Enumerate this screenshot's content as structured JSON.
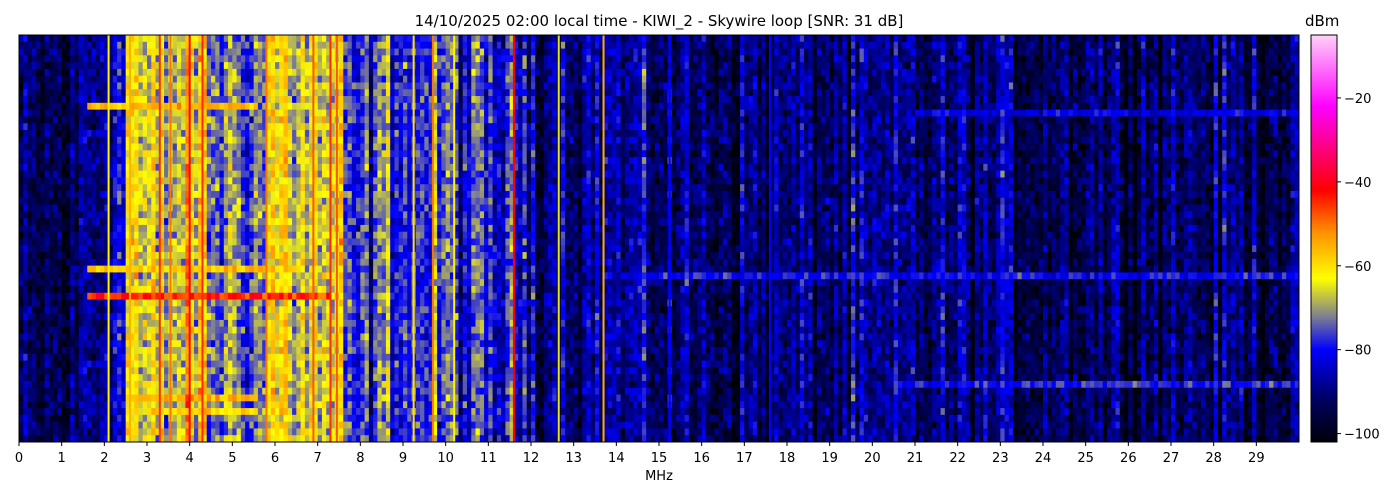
{
  "chart_data": {
    "type": "heatmap",
    "title": "14/10/2025 02:00 local time - KIWI_2 - Skywire loop [SNR: 31 dB]",
    "xlabel": "MHz",
    "ylabel": "",
    "xlim": [
      0,
      30
    ],
    "x_ticks": [
      "0",
      "1",
      "2",
      "3",
      "4",
      "5",
      "6",
      "7",
      "8",
      "9",
      "10",
      "11",
      "12",
      "13",
      "14",
      "15",
      "16",
      "17",
      "18",
      "19",
      "20",
      "21",
      "22",
      "23",
      "24",
      "25",
      "26",
      "27",
      "28",
      "29"
    ],
    "colorbar": {
      "label": "dBm",
      "range": [
        -102,
        -5
      ],
      "ticks": [
        -20,
        -40,
        -60,
        -80,
        -100
      ],
      "tick_labels": [
        "−20",
        "−40",
        "−60",
        "−80",
        "−100"
      ],
      "colormap": [
        {
          "dBm": -102,
          "color": "#000008"
        },
        {
          "dBm": -92,
          "color": "#000060"
        },
        {
          "dBm": -80,
          "color": "#0000ff"
        },
        {
          "dBm": -72,
          "color": "#808090"
        },
        {
          "dBm": -63,
          "color": "#ffff00"
        },
        {
          "dBm": -52,
          "color": "#ff9000"
        },
        {
          "dBm": -42,
          "color": "#ff0000"
        },
        {
          "dBm": -22,
          "color": "#ff00ff"
        },
        {
          "dBm": -5,
          "color": "#ffd0f8"
        }
      ]
    },
    "time_rows": 60,
    "bands_mhz_dbm": [
      [
        0,
        1.4,
        -95
      ],
      [
        1.4,
        2.0,
        -88
      ],
      [
        2.0,
        2.5,
        -82
      ],
      [
        2.5,
        2.8,
        -62
      ],
      [
        2.8,
        3.8,
        -68
      ],
      [
        3.8,
        4.4,
        -63
      ],
      [
        4.4,
        5.8,
        -72
      ],
      [
        5.8,
        6.4,
        -62
      ],
      [
        6.4,
        7.6,
        -66
      ],
      [
        7.6,
        8.4,
        -80
      ],
      [
        8.4,
        9.0,
        -74
      ],
      [
        9.0,
        10.3,
        -77
      ],
      [
        10.3,
        12.1,
        -81
      ],
      [
        12.1,
        14.0,
        -87
      ],
      [
        14.0,
        15.3,
        -89
      ],
      [
        15.3,
        30,
        -91
      ]
    ],
    "carriers_mhz_dbm": [
      [
        2.1,
        -62
      ],
      [
        2.6,
        -55
      ],
      [
        3.3,
        -45
      ],
      [
        3.55,
        -50
      ],
      [
        4.0,
        -42
      ],
      [
        4.3,
        -45
      ],
      [
        5.8,
        -50
      ],
      [
        6.9,
        -48
      ],
      [
        7.3,
        -45
      ],
      [
        7.45,
        -48
      ],
      [
        9.25,
        -60
      ],
      [
        9.7,
        -50
      ],
      [
        10.2,
        -62
      ],
      [
        11.6,
        -42
      ],
      [
        12.65,
        -65
      ],
      [
        13.7,
        -55
      ],
      [
        15.25,
        -80
      ],
      [
        17.6,
        -80
      ]
    ],
    "horizontal_events": [
      {
        "row": 10,
        "from_mhz": 1.6,
        "to_mhz": 5.5,
        "dBm": -55
      },
      {
        "row": 34,
        "from_mhz": 1.6,
        "to_mhz": 6.5,
        "dBm": -58
      },
      {
        "row": 38,
        "from_mhz": 1.6,
        "to_mhz": 7.2,
        "dBm": -45
      },
      {
        "row": 53,
        "from_mhz": 2.5,
        "to_mhz": 5.5,
        "dBm": -55
      },
      {
        "row": 55,
        "from_mhz": 2.5,
        "to_mhz": 5.5,
        "dBm": -60
      },
      {
        "row": 35,
        "from_mhz": 14.0,
        "to_mhz": 30,
        "dBm": -80
      },
      {
        "row": 51,
        "from_mhz": 20.5,
        "to_mhz": 30,
        "dBm": -78
      },
      {
        "row": 11,
        "from_mhz": 21.0,
        "to_mhz": 30,
        "dBm": -82
      }
    ]
  }
}
